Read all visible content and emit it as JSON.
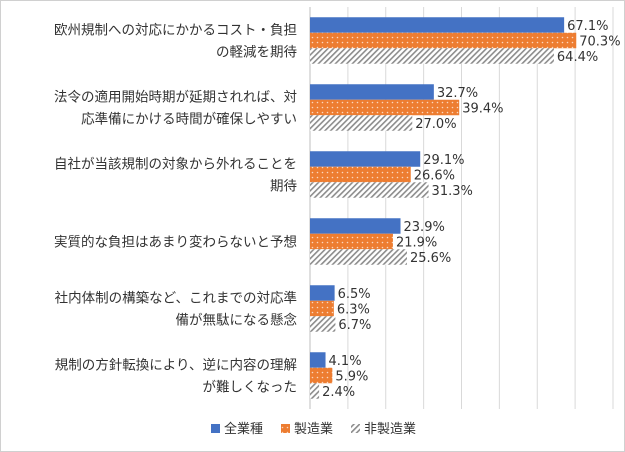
{
  "chart_data": {
    "type": "bar",
    "orientation": "horizontal",
    "categories": [
      [
        "欧州規制への対応にかかるコスト・負担",
        "の軽減を期待"
      ],
      [
        "法令の適用開始時期が延期されれば、対",
        "応準備にかける時間が確保しやすい"
      ],
      [
        "自社が当該規制の対象から外れることを",
        "期待"
      ],
      [
        "実質的な負担はあまり変わらないと予想"
      ],
      [
        "社内体制の構築など、これまでの対応準",
        "備が無駄になる懸念"
      ],
      [
        "規制の方針転換により、逆に内容の理解",
        "が難しくなった"
      ]
    ],
    "series": [
      {
        "name": "全業種",
        "values": [
          67.1,
          32.7,
          29.1,
          23.9,
          6.5,
          4.1
        ],
        "labels": [
          "67.1%",
          "32.7%",
          "29.1%",
          "23.9%",
          "6.5%",
          "4.1%"
        ],
        "color": "#4472c4",
        "pattern": "solid"
      },
      {
        "name": "製造業",
        "values": [
          70.3,
          39.4,
          26.6,
          21.9,
          6.3,
          5.9
        ],
        "labels": [
          "70.3%",
          "39.4%",
          "26.6%",
          "21.9%",
          "6.3%",
          "5.9%"
        ],
        "color": "#ed7d31",
        "pattern": "dots"
      },
      {
        "name": "非製造業",
        "values": [
          64.4,
          27.0,
          31.3,
          25.6,
          6.7,
          2.4
        ],
        "labels": [
          "64.4%",
          "27.0%",
          "31.3%",
          "25.6%",
          "6.7%",
          "2.4%"
        ],
        "color": "#a6a6a6",
        "pattern": "hatch"
      }
    ],
    "xlim": [
      0,
      80
    ],
    "grid": true,
    "legend_position": "bottom"
  }
}
